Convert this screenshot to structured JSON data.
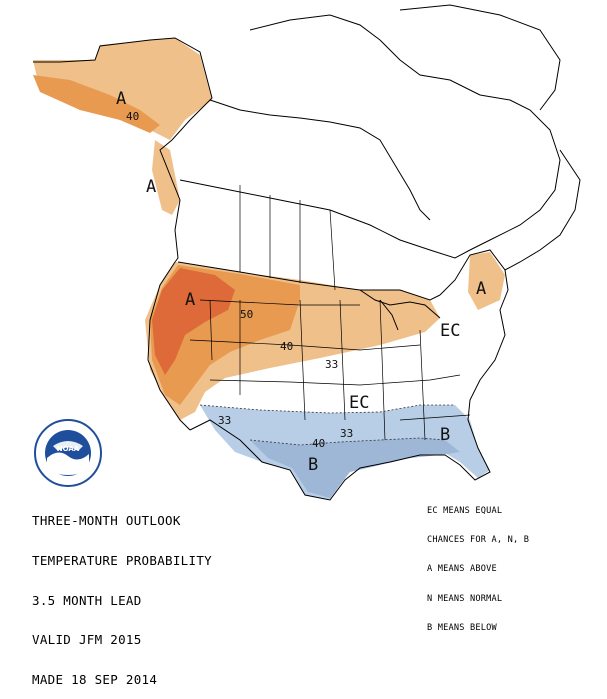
{
  "title_lines": [
    "THREE-MONTH OUTLOOK",
    "TEMPERATURE PROBABILITY",
    "3.5 MONTH LEAD",
    "VALID JFM 2015",
    "MADE 18 SEP 2014"
  ],
  "legend_lines": [
    "EC MEANS EQUAL",
    "CHANCES FOR A, N, B",
    "A MEANS ABOVE",
    "N MEANS NORMAL",
    "B MEANS BELOW"
  ],
  "logo": {
    "text": "NOAA",
    "ring_text": "NATIONAL OCEANIC AND ATMOSPHERIC ADMINISTRATION · U.S. DEPARTMENT OF COMMERCE"
  },
  "map_labels": {
    "alaska_a": "A",
    "alaska_40": "40",
    "bc_a": "A",
    "nw_a": "A",
    "nw_50": "50",
    "nw_40": "40",
    "nw_33": "33",
    "ne_a": "A",
    "ec_ne": "EC",
    "ec_mid": "EC",
    "s_33_west": "33",
    "s_33_mid": "33",
    "s_40": "40",
    "s_b": "B",
    "se_b": "B"
  },
  "colors": {
    "above_33": "#f0c08a",
    "above_40": "#e89a50",
    "above_50": "#dd6a38",
    "below_33": "#b8cde6",
    "below_40": "#9fb7d6",
    "outline": "#000000",
    "noaa_blue": "#1f4f9c"
  }
}
